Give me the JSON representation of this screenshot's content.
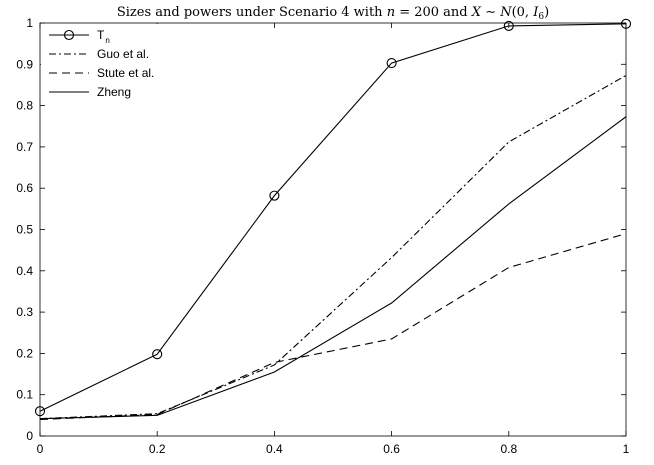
{
  "chart_data": {
    "type": "line",
    "title": {
      "prefix": "Sizes and powers under Scenario 4 with ",
      "n_var": "n",
      "n_eq": " = 200 and ",
      "x_var": "X",
      "dist": " ∼ ",
      "n_dist": "N",
      "open": "(0, ",
      "i_var": "I",
      "i_sub": "6",
      "close": ")"
    },
    "xlabel": "",
    "ylabel": "",
    "xlim": [
      0,
      1
    ],
    "ylim": [
      0,
      1
    ],
    "grid": false,
    "legend_position": "top-left",
    "x": [
      0,
      0.2,
      0.4,
      0.6,
      0.8,
      1.0
    ],
    "x_tick_labels": [
      "0",
      "0.2",
      "0.4",
      "0.6",
      "0.8",
      "1"
    ],
    "y_tick_labels": [
      "0",
      "0.1",
      "0.2",
      "0.3",
      "0.4",
      "0.5",
      "0.6",
      "0.7",
      "0.8",
      "0.9",
      "1"
    ],
    "series": [
      {
        "name": "T",
        "name_sub": "n",
        "style": "solid-circle",
        "color": "#000000",
        "values": [
          0.06,
          0.198,
          0.582,
          0.903,
          0.993,
          0.998
        ]
      },
      {
        "name": "Guo et al.",
        "style": "dashdot",
        "color": "#000000",
        "values": [
          0.042,
          0.054,
          0.172,
          0.432,
          0.712,
          0.873
        ]
      },
      {
        "name": "Stute et al.",
        "style": "dashed",
        "color": "#000000",
        "values": [
          0.04,
          0.052,
          0.178,
          0.235,
          0.408,
          0.49
        ]
      },
      {
        "name": "Zheng",
        "style": "solid",
        "color": "#000000",
        "values": [
          0.042,
          0.05,
          0.155,
          0.322,
          0.562,
          0.773
        ]
      }
    ]
  }
}
